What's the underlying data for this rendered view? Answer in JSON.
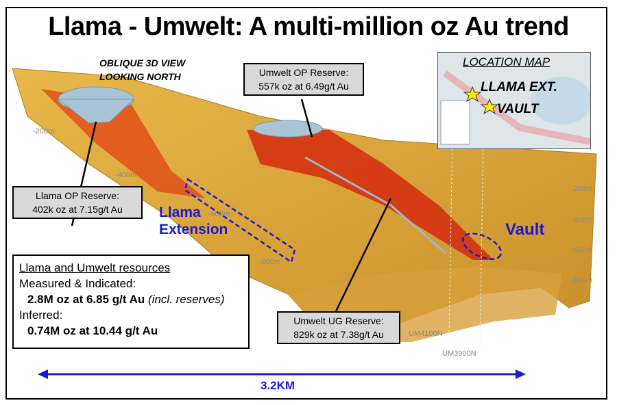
{
  "title": "Llama - Umwelt: A multi-million oz Au trend",
  "view_label": [
    "OBLIQUE 3D VIEW",
    "LOOKING NORTH"
  ],
  "callouts": {
    "llama_op": {
      "line1": "Llama OP Reserve:",
      "line2": "402k oz at 7.15g/t Au"
    },
    "umwelt_op": {
      "line1": "Umwelt OP Reserve:",
      "line2": "557k oz at 6.49g/t Au"
    },
    "umwelt_ug": {
      "line1": "Umwelt  UG Reserve:",
      "line2": "829k oz at 7.38g/t Au"
    }
  },
  "regions": {
    "llama_ext": [
      "Llama",
      "Extension"
    ],
    "vault": "Vault"
  },
  "depths_left": [
    "-200m",
    "-400m",
    "-600m",
    "-800m"
  ],
  "depths_right": [
    "-200m",
    "-400m",
    "-600m",
    "-800m"
  ],
  "sections": [
    "UM4100N",
    "UM3900N"
  ],
  "resources": {
    "heading": "Llama and Umwelt resources",
    "mi_label": "Measured & Indicated:",
    "mi_value": "2.8M oz at 6.85 g/t Au",
    "mi_note": "(incl. reserves)",
    "inf_label": "Inferred:",
    "inf_value": "0.74M oz at 10.44 g/t Au"
  },
  "location_map": {
    "title": "LOCATION MAP",
    "labels": [
      "LLAMA EXT.",
      "VAULT"
    ]
  },
  "scale": "3.2KM",
  "colors": {
    "orebody": "#d9a537",
    "high_grade": "#e03010",
    "pit": "#a9c4d6",
    "annotation_blue": "#1a1ad6"
  }
}
